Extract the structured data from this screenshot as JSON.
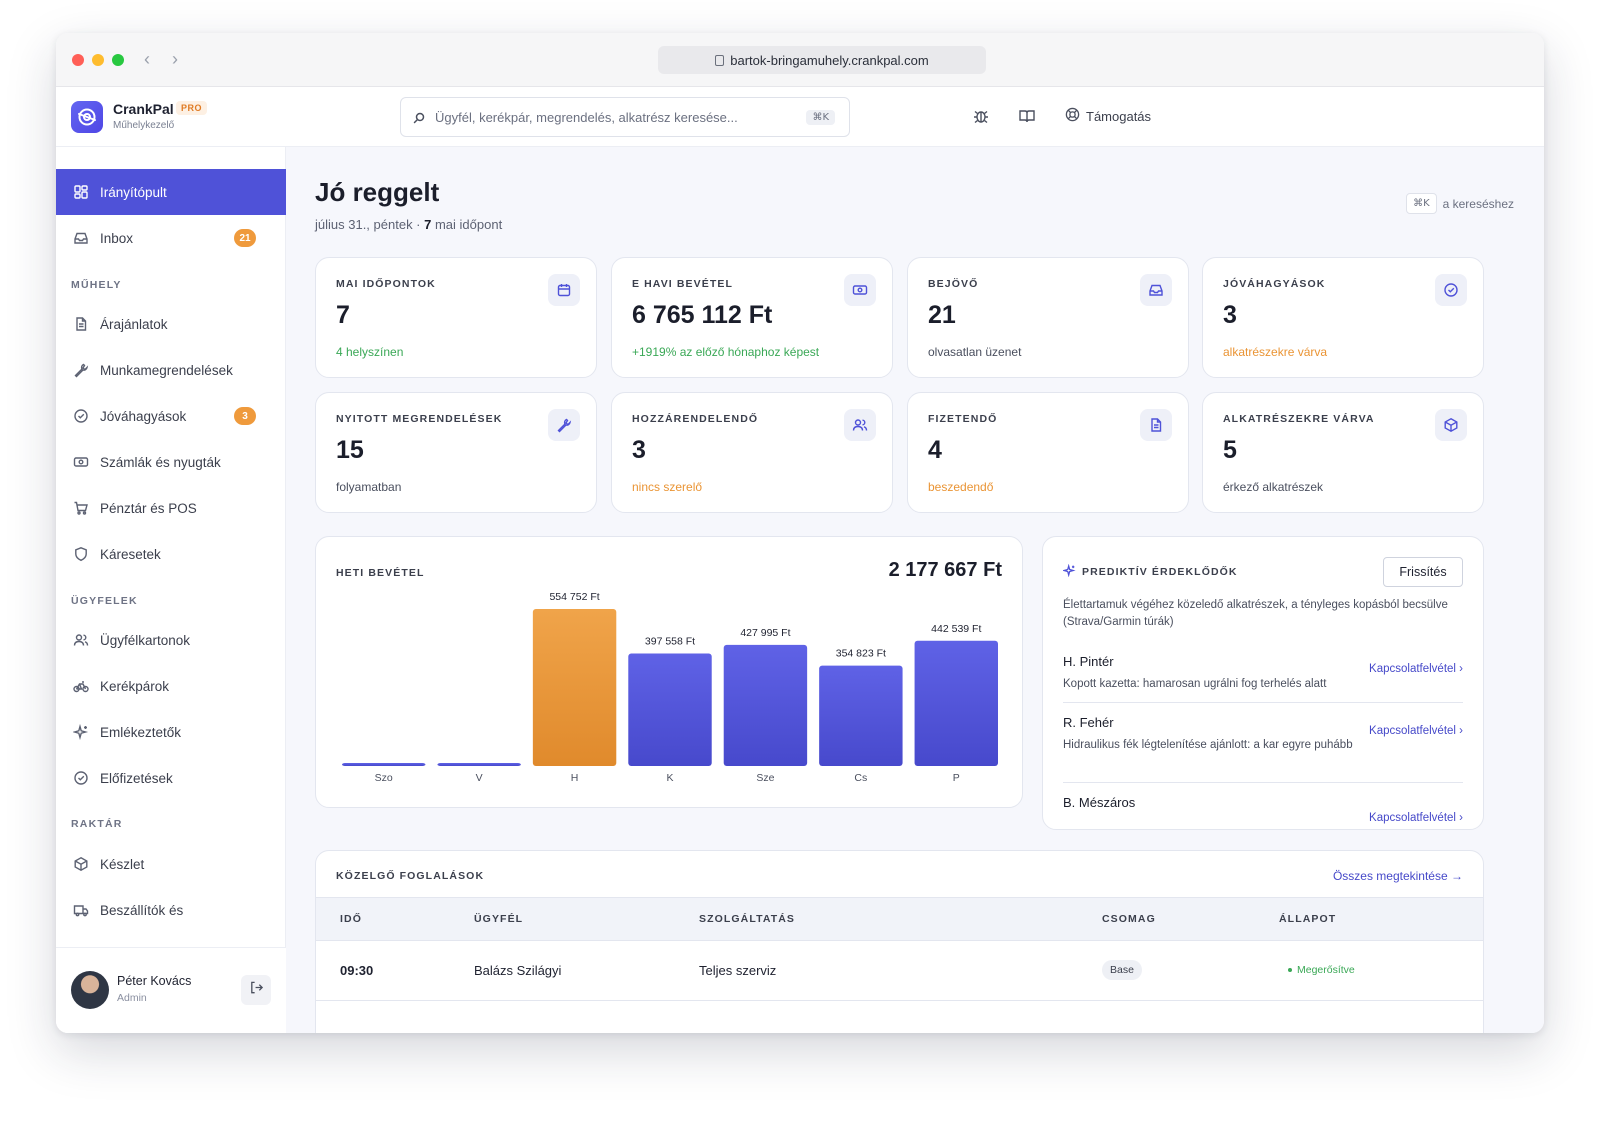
{
  "browser": {
    "url": "bartok-bringamuhely.crankpal.com"
  },
  "brand": {
    "name": "CrankPal",
    "badge": "PRO",
    "subtitle": "Műhelykezelő"
  },
  "search": {
    "placeholder": "Ügyfél, kerékpár, megrendelés, alkatrész keresése...",
    "shortcut": "⌘K"
  },
  "topnav": {
    "support_label": "Támogatás"
  },
  "sidebar": {
    "items": [
      {
        "label": "Irányítópult",
        "icon": "grid-icon",
        "active": true
      },
      {
        "label": "Inbox",
        "icon": "inbox-icon",
        "badge": "21"
      }
    ],
    "sections": [
      {
        "title": "MŰHELY",
        "items": [
          {
            "label": "Árajánlatok",
            "icon": "document-icon"
          },
          {
            "label": "Munkamegrendelések",
            "icon": "wrench-icon"
          },
          {
            "label": "Jóváhagyások",
            "icon": "check-circle-icon",
            "badge": "3"
          },
          {
            "label": "Számlák és nyugták",
            "icon": "banknote-icon"
          },
          {
            "label": "Pénztár és POS",
            "icon": "cart-icon"
          },
          {
            "label": "Káresetek",
            "icon": "shield-icon"
          }
        ]
      },
      {
        "title": "ÜGYFELEK",
        "items": [
          {
            "label": "Ügyfélkartonok",
            "icon": "users-icon"
          },
          {
            "label": "Kerékpárok",
            "icon": "bike-icon"
          },
          {
            "label": "Emlékeztetők",
            "icon": "sparkle-icon"
          },
          {
            "label": "Előfizetések",
            "icon": "check-circle-icon"
          }
        ]
      },
      {
        "title": "RAKTÁR",
        "items": [
          {
            "label": "Készlet",
            "icon": "box-icon"
          },
          {
            "label": "Beszállítók és",
            "icon": "truck-icon"
          }
        ]
      }
    ],
    "user": {
      "name": "Péter Kovács",
      "role": "Admin"
    }
  },
  "header": {
    "title": "Jó reggelt",
    "date": "július 31., péntek · ",
    "appointments_count": "7",
    "appointments_suffix": " mai időpont",
    "search_hint_key": "⌘K",
    "search_hint_text": "a kereséshez"
  },
  "stats": [
    {
      "label": "MAI IDŐPONTOK",
      "value": "7",
      "sub": "4 helyszínen",
      "tone": "green",
      "icon": "calendar-icon"
    },
    {
      "label": "E HAVI BEVÉTEL",
      "value": "6 765 112 Ft",
      "sub": "+1919% az előző hónaphoz képest",
      "tone": "green",
      "icon": "banknote-icon"
    },
    {
      "label": "BEJÖVŐ",
      "value": "21",
      "sub": "olvasatlan üzenet",
      "tone": "neutral",
      "icon": "inbox-icon"
    },
    {
      "label": "JÓVÁHAGYÁSOK",
      "value": "3",
      "sub": "alkatrészekre várva",
      "tone": "orange",
      "icon": "check-circle-icon"
    },
    {
      "label": "NYITOTT MEGRENDELÉSEK",
      "value": "15",
      "sub": "folyamatban",
      "tone": "neutral",
      "icon": "wrench-icon"
    },
    {
      "label": "HOZZÁRENDELENDŐ",
      "value": "3",
      "sub": "nincs szerelő",
      "tone": "orange",
      "icon": "users-icon"
    },
    {
      "label": "FIZETENDŐ",
      "value": "4",
      "sub": "beszedendő",
      "tone": "orange",
      "icon": "document-icon"
    },
    {
      "label": "ALKATRÉSZEKRE VÁRVA",
      "value": "5",
      "sub": "érkező alkatrészek",
      "tone": "neutral",
      "icon": "box-icon"
    }
  ],
  "chart_data": {
    "type": "bar",
    "title": "HETI BEVÉTEL",
    "total_label": "2 177 667 Ft",
    "categories": [
      "Szo",
      "V",
      "H",
      "K",
      "Sze",
      "Cs",
      "P"
    ],
    "values": [
      0,
      0,
      554752,
      397558,
      427995,
      354823,
      442539
    ],
    "value_labels": [
      "",
      "",
      "554 752 Ft",
      "397 558 Ft",
      "427 995 Ft",
      "354 823 Ft",
      "442 539 Ft"
    ],
    "highlight_index": 2,
    "colors": {
      "default": "#5457dd",
      "highlight": "#ec9a3f"
    },
    "ylim": [
      0,
      554752
    ],
    "grid": false
  },
  "predictive": {
    "title": "PREDIKTÍV ÉRDEKLŐDŐK",
    "refresh_label": "Frissítés",
    "description": "Élettartamuk végéhez közeledő alkatrészek, a tényleges kopásból becsülve (Strava/Garmin túrák)",
    "items": [
      {
        "name": "H. Pintér",
        "note": "Kopott kazetta: hamarosan ugrálni fog terhelés alatt",
        "action": "Kapcsolatfelvétel ›"
      },
      {
        "name": "R. Fehér",
        "note": "Hidraulikus fék légtelenítése ajánlott: a kar egyre puhább",
        "action": "Kapcsolatfelvétel ›"
      },
      {
        "name": "B. Mészáros",
        "note": "",
        "action": "Kapcsolatfelvétel ›"
      }
    ]
  },
  "bookings": {
    "title": "KÖZELGŐ FOGLALÁSOK",
    "view_all": "Összes megtekintése →",
    "columns": [
      "IDŐ",
      "ÜGYFÉL",
      "SZOLGÁLTATÁS",
      "CSOMAG",
      "ÁLLAPOT"
    ],
    "rows": [
      {
        "time": "09:30",
        "customer": "Balázs Szilágyi",
        "service": "Teljes szerviz",
        "package": "Base",
        "status": "Megerősítve"
      }
    ]
  }
}
